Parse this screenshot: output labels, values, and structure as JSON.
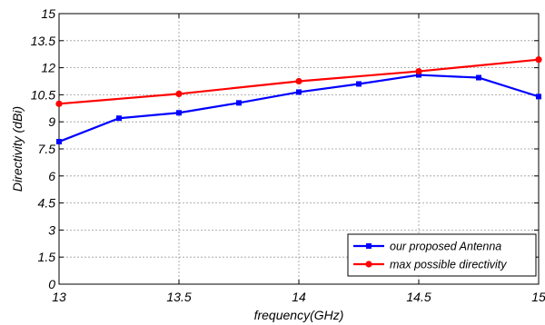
{
  "chart_data": {
    "type": "line",
    "title": "",
    "xlabel": "frequency(GHz)",
    "ylabel": "Directivity (dBi)",
    "xlim": [
      13,
      15
    ],
    "ylim": [
      0,
      15
    ],
    "x_ticks": [
      "13",
      "13.5",
      "14",
      "14.5",
      "15"
    ],
    "y_ticks": [
      "0",
      "1.5",
      "3",
      "4.5",
      "6",
      "7.5",
      "9",
      "10.5",
      "12",
      "13.5",
      "15"
    ],
    "grid": true,
    "legend_position": "bottom-right",
    "series": [
      {
        "name": "our proposed Antenna",
        "color": "#0000ff",
        "marker": "square",
        "x": [
          13,
          13.25,
          13.5,
          13.75,
          14,
          14.25,
          14.5,
          14.75,
          15
        ],
        "y": [
          7.9,
          9.2,
          9.5,
          10.05,
          10.65,
          11.1,
          11.6,
          11.45,
          10.4
        ]
      },
      {
        "name": "max possible directivity",
        "color": "#ff0000",
        "marker": "circle",
        "x": [
          13,
          13.5,
          14,
          14.5,
          15
        ],
        "y": [
          10.0,
          10.55,
          11.25,
          11.8,
          12.45
        ]
      }
    ]
  }
}
